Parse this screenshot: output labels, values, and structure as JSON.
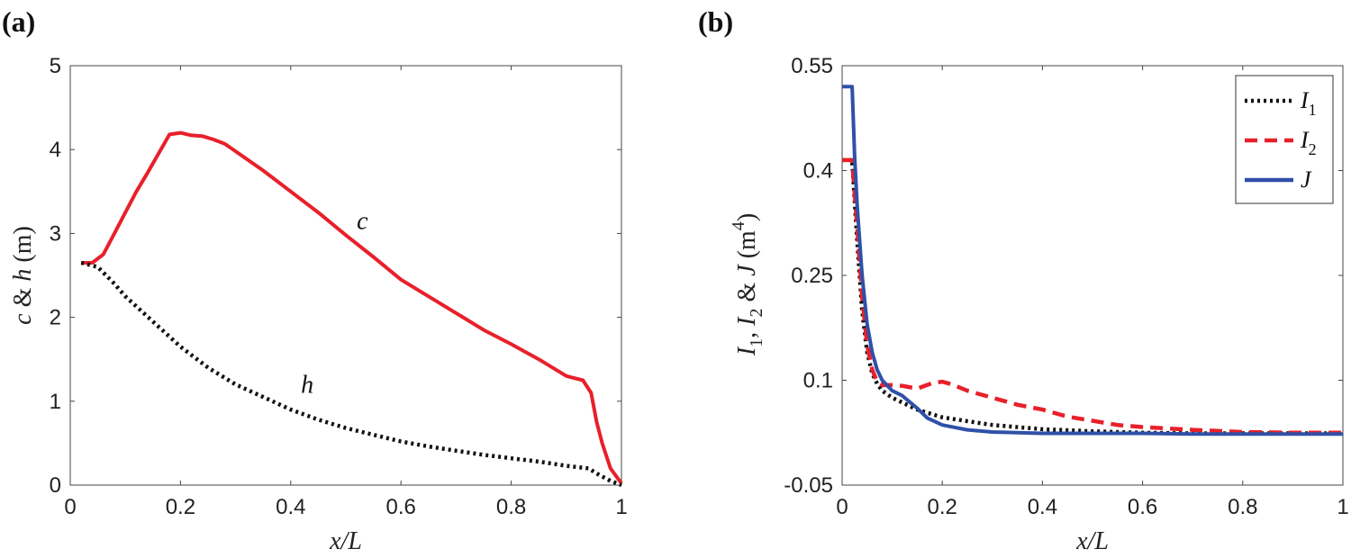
{
  "colors": {
    "red": "#e8202a",
    "black": "#111111",
    "blue": "#3050a8"
  },
  "chart_data": [
    {
      "type": "line",
      "panel_label": "(a)",
      "xlabel": "x/L",
      "ylabel": {
        "p1": "c",
        "p2": " & ",
        "p3": "h",
        "p4": " (m)"
      },
      "xlim": [
        0,
        1
      ],
      "ylim": [
        0,
        5
      ],
      "xticks": [
        0,
        0.2,
        0.4,
        0.6,
        0.8,
        1
      ],
      "xtick_labels": [
        "0",
        "0.2",
        "0.4",
        "0.6",
        "0.8",
        "1"
      ],
      "yticks": [
        0,
        1,
        2,
        3,
        4,
        5
      ],
      "ytick_labels": [
        "0",
        "1",
        "2",
        "3",
        "4",
        "5"
      ],
      "annotations": [
        {
          "text": "c",
          "x": 0.53,
          "y": 3.05
        },
        {
          "text": "h",
          "x": 0.43,
          "y": 1.1
        }
      ],
      "series": [
        {
          "name": "c",
          "color": "red",
          "style": "solid",
          "x": [
            0.02,
            0.04,
            0.06,
            0.08,
            0.1,
            0.12,
            0.14,
            0.16,
            0.18,
            0.2,
            0.22,
            0.24,
            0.26,
            0.28,
            0.3,
            0.35,
            0.4,
            0.45,
            0.5,
            0.55,
            0.6,
            0.65,
            0.7,
            0.75,
            0.8,
            0.85,
            0.9,
            0.93,
            0.945,
            0.955,
            0.965,
            0.98,
            1.0
          ],
          "values": [
            2.65,
            2.65,
            2.75,
            3.0,
            3.25,
            3.5,
            3.72,
            3.95,
            4.18,
            4.2,
            4.17,
            4.16,
            4.12,
            4.07,
            3.98,
            3.75,
            3.5,
            3.25,
            2.98,
            2.72,
            2.45,
            2.25,
            2.05,
            1.85,
            1.68,
            1.5,
            1.3,
            1.25,
            1.1,
            0.75,
            0.5,
            0.2,
            0.02
          ]
        },
        {
          "name": "h",
          "color": "black",
          "style": "dotted",
          "x": [
            0.02,
            0.05,
            0.08,
            0.1,
            0.15,
            0.2,
            0.25,
            0.3,
            0.35,
            0.4,
            0.45,
            0.5,
            0.55,
            0.6,
            0.65,
            0.7,
            0.75,
            0.8,
            0.85,
            0.9,
            0.94,
            0.96,
            0.98,
            1.0
          ],
          "values": [
            2.65,
            2.6,
            2.4,
            2.25,
            1.95,
            1.65,
            1.4,
            1.2,
            1.05,
            0.9,
            0.78,
            0.68,
            0.6,
            0.52,
            0.46,
            0.41,
            0.36,
            0.32,
            0.28,
            0.23,
            0.2,
            0.12,
            0.05,
            0.0
          ]
        }
      ]
    },
    {
      "type": "line",
      "panel_label": "(b)",
      "xlabel": "x/L",
      "ylabel": {
        "I": "I",
        "sub1": "1",
        "comma": ", ",
        "I2": "I",
        "sub2": "2",
        "amp": " & ",
        "J": "J",
        "unit": " (m",
        "sup": "4",
        "close": ")"
      },
      "xlim": [
        0,
        1
      ],
      "ylim": [
        -0.05,
        0.55
      ],
      "xticks": [
        0,
        0.2,
        0.4,
        0.6,
        0.8,
        1
      ],
      "xtick_labels": [
        "0",
        "0.2",
        "0.4",
        "0.6",
        "0.8",
        "1"
      ],
      "yticks": [
        -0.05,
        0.1,
        0.25,
        0.4,
        0.55
      ],
      "ytick_labels": [
        "-0.05",
        "0.1",
        "0.25",
        "0.4",
        "0.55"
      ],
      "legend": {
        "position": "top-right"
      },
      "series": [
        {
          "name": "I",
          "sub": "1",
          "color": "black",
          "style": "dotted",
          "x": [
            0.0,
            0.02,
            0.03,
            0.04,
            0.05,
            0.06,
            0.07,
            0.08,
            0.1,
            0.15,
            0.2,
            0.3,
            0.4,
            0.5,
            0.6,
            0.7,
            1.0
          ],
          "values": [
            0.415,
            0.415,
            0.3,
            0.2,
            0.14,
            0.11,
            0.095,
            0.085,
            0.075,
            0.058,
            0.047,
            0.036,
            0.03,
            0.027,
            0.025,
            0.024,
            0.024
          ]
        },
        {
          "name": "I",
          "sub": "2",
          "color": "red",
          "style": "dashed",
          "x": [
            0.0,
            0.02,
            0.03,
            0.04,
            0.05,
            0.06,
            0.07,
            0.08,
            0.1,
            0.12,
            0.15,
            0.18,
            0.2,
            0.22,
            0.25,
            0.3,
            0.35,
            0.4,
            0.45,
            0.5,
            0.55,
            0.6,
            0.7,
            0.8,
            0.9,
            1.0
          ],
          "values": [
            0.415,
            0.415,
            0.32,
            0.22,
            0.15,
            0.115,
            0.098,
            0.093,
            0.093,
            0.092,
            0.088,
            0.096,
            0.098,
            0.094,
            0.085,
            0.075,
            0.065,
            0.058,
            0.048,
            0.042,
            0.036,
            0.033,
            0.029,
            0.026,
            0.025,
            0.025
          ]
        },
        {
          "name": "J",
          "sub": "",
          "color": "blue",
          "style": "solid",
          "x": [
            0.0,
            0.02,
            0.025,
            0.03,
            0.04,
            0.05,
            0.06,
            0.07,
            0.08,
            0.1,
            0.12,
            0.15,
            0.17,
            0.2,
            0.25,
            0.3,
            0.4,
            0.5,
            0.6,
            0.7,
            1.0
          ],
          "values": [
            0.52,
            0.52,
            0.42,
            0.35,
            0.25,
            0.18,
            0.14,
            0.115,
            0.1,
            0.085,
            0.078,
            0.06,
            0.046,
            0.036,
            0.029,
            0.026,
            0.024,
            0.024,
            0.024,
            0.023,
            0.023
          ]
        }
      ]
    }
  ]
}
